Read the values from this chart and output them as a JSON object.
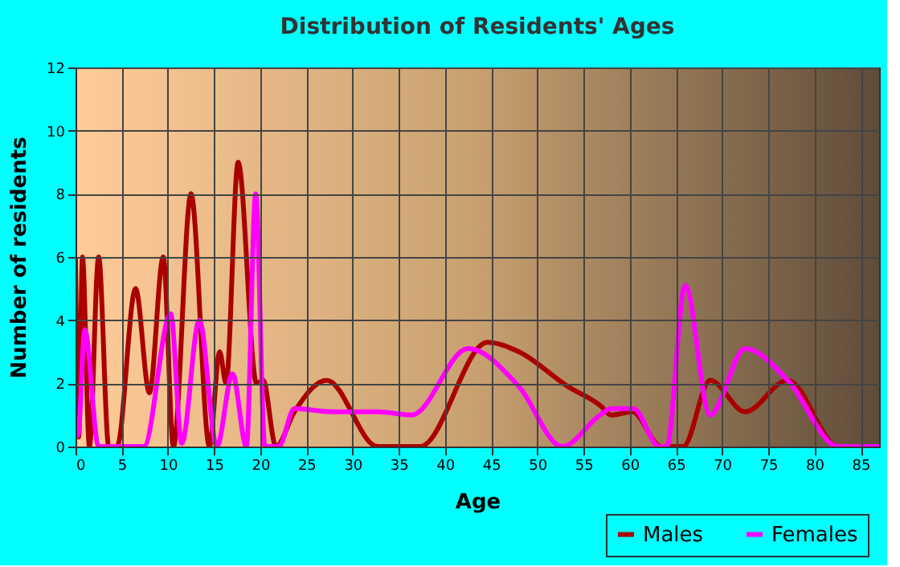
{
  "chart_data": {
    "type": "line",
    "title": "Distribution of Residents' Ages",
    "xlabel": "Age",
    "ylabel": "Number of residents",
    "series": [
      {
        "name": "Males",
        "color": "#aa0000",
        "x": [
          0,
          0.35,
          0.75,
          1.5,
          2.5,
          3.6,
          4.5,
          6.5,
          8,
          9.5,
          10.6,
          12.5,
          14.5,
          15.6,
          16.3,
          17.6,
          19.6,
          20.3,
          21.7,
          23.7,
          27.2,
          32.7,
          37.3,
          44.6,
          48,
          53.3,
          56.8,
          58,
          60.3,
          63.4,
          65.8,
          68.7,
          72.5,
          77.1,
          82.6,
          87
        ],
        "values": [
          6,
          0.3,
          6,
          0,
          6,
          0,
          0,
          5,
          1.7,
          6,
          0,
          8,
          0,
          3,
          2,
          9,
          2,
          2.1,
          0,
          1.1,
          2.1,
          0,
          0,
          3.3,
          3,
          1.9,
          1.3,
          1,
          1.1,
          0,
          0,
          2.1,
          1.1,
          2.1,
          0,
          0
        ]
      },
      {
        "name": "Females",
        "color": "#ff00ff",
        "x": [
          0,
          0.3,
          1,
          2.5,
          7.4,
          10.3,
          11.5,
          13.4,
          15.3,
          17,
          18.5,
          19.5,
          20.5,
          22,
          23.7,
          27.7,
          32.7,
          36.4,
          42.5,
          48,
          52.7,
          56.8,
          58,
          60.4,
          63.2,
          64,
          66,
          68.7,
          72.5,
          77.1,
          82.6,
          87
        ],
        "values": [
          0.3,
          0.4,
          3.7,
          0,
          0,
          4.2,
          0.1,
          4,
          0,
          2.3,
          0,
          8,
          0,
          0,
          1.2,
          1.1,
          1.1,
          1,
          3.1,
          1.9,
          0,
          1,
          1.2,
          1.2,
          0,
          0,
          5.1,
          1,
          3.1,
          2.1,
          0,
          0
        ]
      }
    ],
    "xlim": [
      0,
      87
    ],
    "xticks": [
      0,
      5,
      10,
      15,
      20,
      25,
      30,
      35,
      40,
      45,
      50,
      55,
      60,
      65,
      70,
      75,
      80,
      85
    ],
    "ylim": [
      0,
      12
    ],
    "yticks": [
      0,
      2,
      4,
      6,
      8,
      10,
      12
    ],
    "grid": true,
    "legend": "bottom right"
  }
}
